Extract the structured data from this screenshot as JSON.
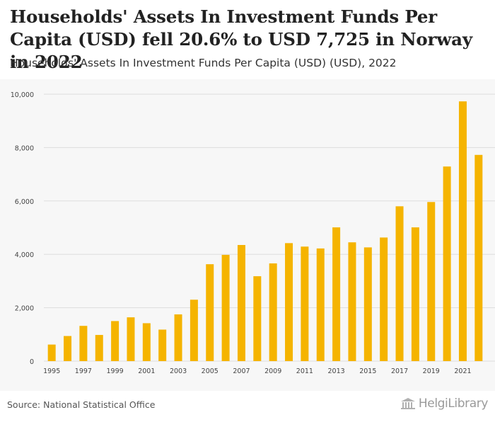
{
  "title": "Households' Assets In Investment Funds Per Capita (USD) fell 20.6% to USD 7,725 in Norway in 2022",
  "subtitle": "Households' Assets In Investment Funds Per Capita (USD) (USD), 2022",
  "source": "Source: National Statistical Office",
  "brand": "HelgiLibrary",
  "colors": {
    "bar": "#f5b400",
    "grid": "#dddddd",
    "axis_text": "#444444",
    "panel": "#f7f7f7"
  },
  "chart_data": {
    "type": "bar",
    "title": "Households' Assets In Investment Funds Per Capita (USD) (USD), 2022",
    "xlabel": "",
    "ylabel": "",
    "ylim": [
      0,
      10000
    ],
    "yticks": [
      0,
      2000,
      4000,
      6000,
      8000,
      10000
    ],
    "ytick_labels": [
      "0",
      "2,000",
      "4,000",
      "6,000",
      "8,000",
      "10,000"
    ],
    "categories": [
      "1995",
      "1996",
      "1997",
      "1998",
      "1999",
      "2000",
      "2001",
      "2002",
      "2003",
      "2004",
      "2005",
      "2006",
      "2007",
      "2008",
      "2009",
      "2010",
      "2011",
      "2012",
      "2013",
      "2014",
      "2015",
      "2016",
      "2017",
      "2018",
      "2019",
      "2020",
      "2021",
      "2022"
    ],
    "xtick_labels": [
      "1995",
      "1997",
      "1999",
      "2001",
      "2003",
      "2005",
      "2007",
      "2009",
      "2011",
      "2013",
      "2015",
      "2017",
      "2019",
      "2021"
    ],
    "values": [
      620,
      940,
      1320,
      980,
      1500,
      1640,
      1420,
      1180,
      1750,
      2300,
      3630,
      3980,
      4350,
      3180,
      3660,
      4420,
      4290,
      4220,
      5010,
      4450,
      4260,
      4630,
      5800,
      5010,
      5960,
      7290,
      9730,
      7725
    ],
    "grid": true,
    "legend": "none"
  }
}
